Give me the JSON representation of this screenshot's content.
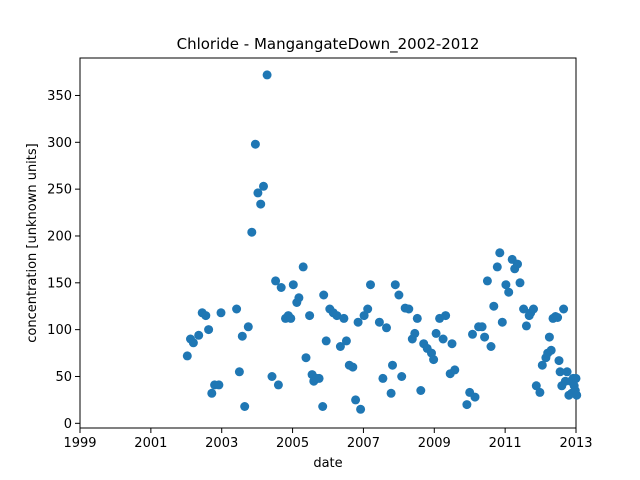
{
  "chart_data": {
    "type": "scatter",
    "title": "Chloride - MangangateDown_2002-2012",
    "xlabel": "date",
    "ylabel": "concentration [unknown units]",
    "x_unit": "year",
    "xlim": [
      1999,
      2013
    ],
    "ylim": [
      -5,
      390
    ],
    "xticks": [
      1999,
      2001,
      2003,
      2005,
      2007,
      2009,
      2011,
      2013
    ],
    "yticks": [
      0,
      50,
      100,
      150,
      200,
      250,
      300,
      350
    ],
    "grid": false,
    "legend": "none",
    "marker_color": "#1f77b4",
    "points": [
      [
        2002.03,
        72
      ],
      [
        2002.12,
        90
      ],
      [
        2002.2,
        86
      ],
      [
        2002.35,
        94
      ],
      [
        2002.45,
        118
      ],
      [
        2002.55,
        115
      ],
      [
        2002.63,
        100
      ],
      [
        2002.72,
        32
      ],
      [
        2002.8,
        41
      ],
      [
        2002.92,
        41
      ],
      [
        2002.98,
        118
      ],
      [
        2003.42,
        122
      ],
      [
        2003.5,
        55
      ],
      [
        2003.58,
        93
      ],
      [
        2003.65,
        18
      ],
      [
        2003.75,
        103
      ],
      [
        2003.85,
        204
      ],
      [
        2003.95,
        298
      ],
      [
        2004.02,
        246
      ],
      [
        2004.1,
        234
      ],
      [
        2004.18,
        253
      ],
      [
        2004.28,
        372
      ],
      [
        2004.42,
        50
      ],
      [
        2004.52,
        152
      ],
      [
        2004.6,
        41
      ],
      [
        2004.68,
        145
      ],
      [
        2004.8,
        112
      ],
      [
        2004.88,
        115
      ],
      [
        2004.95,
        112
      ],
      [
        2005.02,
        148
      ],
      [
        2005.12,
        129
      ],
      [
        2005.18,
        134
      ],
      [
        2005.3,
        167
      ],
      [
        2005.38,
        70
      ],
      [
        2005.48,
        115
      ],
      [
        2005.55,
        52
      ],
      [
        2005.6,
        45
      ],
      [
        2005.68,
        48
      ],
      [
        2005.75,
        48
      ],
      [
        2005.85,
        18
      ],
      [
        2005.88,
        137
      ],
      [
        2005.95,
        88
      ],
      [
        2006.05,
        122
      ],
      [
        2006.15,
        118
      ],
      [
        2006.25,
        115
      ],
      [
        2006.35,
        82
      ],
      [
        2006.45,
        112
      ],
      [
        2006.52,
        88
      ],
      [
        2006.6,
        62
      ],
      [
        2006.7,
        60
      ],
      [
        2006.78,
        25
      ],
      [
        2006.85,
        108
      ],
      [
        2006.92,
        15
      ],
      [
        2007.02,
        115
      ],
      [
        2007.12,
        122
      ],
      [
        2007.2,
        148
      ],
      [
        2007.45,
        108
      ],
      [
        2007.55,
        48
      ],
      [
        2007.65,
        102
      ],
      [
        2007.78,
        32
      ],
      [
        2007.82,
        62
      ],
      [
        2007.9,
        148
      ],
      [
        2008.0,
        137
      ],
      [
        2008.08,
        50
      ],
      [
        2008.18,
        123
      ],
      [
        2008.28,
        122
      ],
      [
        2008.38,
        90
      ],
      [
        2008.45,
        96
      ],
      [
        2008.52,
        112
      ],
      [
        2008.62,
        35
      ],
      [
        2008.7,
        85
      ],
      [
        2008.8,
        80
      ],
      [
        2008.92,
        75
      ],
      [
        2008.98,
        68
      ],
      [
        2009.05,
        96
      ],
      [
        2009.15,
        112
      ],
      [
        2009.25,
        90
      ],
      [
        2009.32,
        115
      ],
      [
        2009.45,
        53
      ],
      [
        2009.5,
        85
      ],
      [
        2009.58,
        57
      ],
      [
        2009.92,
        20
      ],
      [
        2010.0,
        33
      ],
      [
        2010.08,
        95
      ],
      [
        2010.15,
        28
      ],
      [
        2010.25,
        103
      ],
      [
        2010.35,
        103
      ],
      [
        2010.42,
        92
      ],
      [
        2010.5,
        152
      ],
      [
        2010.6,
        82
      ],
      [
        2010.68,
        125
      ],
      [
        2010.78,
        167
      ],
      [
        2010.85,
        182
      ],
      [
        2010.92,
        108
      ],
      [
        2011.02,
        148
      ],
      [
        2011.1,
        140
      ],
      [
        2011.2,
        175
      ],
      [
        2011.27,
        165
      ],
      [
        2011.35,
        170
      ],
      [
        2011.42,
        150
      ],
      [
        2011.52,
        122
      ],
      [
        2011.6,
        104
      ],
      [
        2011.68,
        115
      ],
      [
        2011.72,
        118
      ],
      [
        2011.8,
        122
      ],
      [
        2011.88,
        40
      ],
      [
        2011.98,
        33
      ],
      [
        2012.05,
        62
      ],
      [
        2012.15,
        70
      ],
      [
        2012.2,
        75
      ],
      [
        2012.25,
        92
      ],
      [
        2012.3,
        78
      ],
      [
        2012.35,
        112
      ],
      [
        2012.42,
        114
      ],
      [
        2012.48,
        113
      ],
      [
        2012.52,
        67
      ],
      [
        2012.55,
        55
      ],
      [
        2012.6,
        40
      ],
      [
        2012.65,
        122
      ],
      [
        2012.7,
        45
      ],
      [
        2012.75,
        55
      ],
      [
        2012.8,
        30
      ],
      [
        2012.85,
        45
      ],
      [
        2012.88,
        32
      ],
      [
        2012.92,
        48
      ],
      [
        2012.95,
        40
      ],
      [
        2012.98,
        35
      ],
      [
        2013.0,
        48
      ],
      [
        2013.02,
        30
      ]
    ]
  }
}
